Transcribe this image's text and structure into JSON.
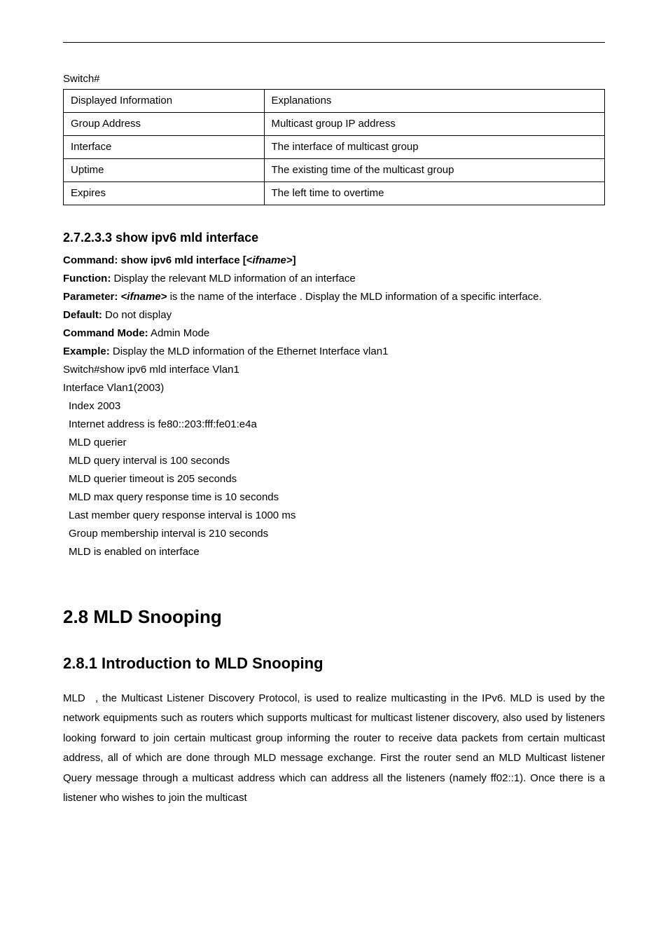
{
  "switch_prompt": "Switch#",
  "table": {
    "rows": [
      [
        "Displayed Information",
        "Explanations"
      ],
      [
        "Group Address",
        "Multicast group IP address"
      ],
      [
        "Interface",
        "The interface of multicast group"
      ],
      [
        "Uptime",
        "The existing time of the multicast group"
      ],
      [
        "Expires",
        "The left time to overtime"
      ]
    ]
  },
  "cmd_section": {
    "heading": "2.7.2.3.3 show ipv6 mld interface",
    "command_label": "Command:",
    "command": "show ipv6 mld interface",
    "command_tail": " [<",
    "command_ital": "ifname>",
    "command_close": "]",
    "function_label": "Function:",
    "function_text": " Display the relevant MLD information of an interface",
    "param_label": "Parameter: ",
    "param_ital": "<ifname>",
    "param_text": " is the name of the interface . Display the MLD information of a specific interface.",
    "default_label": "Default:",
    "default_text": " Do not display",
    "mode_label": "Command Mode:",
    "mode_text": " Admin Mode",
    "example_label": "Example:",
    "example_text": " Display the MLD information of the Ethernet Interface vlan1",
    "out_lines": [
      "Switch#show ipv6 mld interface Vlan1",
      "Interface Vlan1(2003)",
      " Index 2003",
      " Internet address is fe80::203:fff:fe01:e4a",
      " MLD querier",
      " MLD query interval is 100 seconds",
      " MLD querier timeout is 205 seconds",
      " MLD max query response time is 10 seconds",
      " Last member query response interval is 1000 ms",
      " Group membership interval is 210 seconds",
      " MLD is enabled on interface"
    ]
  },
  "big_title": "2.8 MLD Snooping",
  "sub_title": "2.8.1 Introduction to MLD Snooping",
  "paragraph_lead": "MLD",
  "paragraph": ", the Multicast Listener Discovery Protocol, is used to realize multicasting in the IPv6. MLD is used by the network equipments such as routers which supports multicast for multicast listener discovery, also used by listeners looking forward to join certain multicast group informing the router to receive data packets from certain multicast address, all of which are done through MLD message exchange. First the router send an MLD Multicast listener Query message through a multicast address which can address all the listeners (namely ff02::1). Once there is a listener who wishes to join the multicast"
}
